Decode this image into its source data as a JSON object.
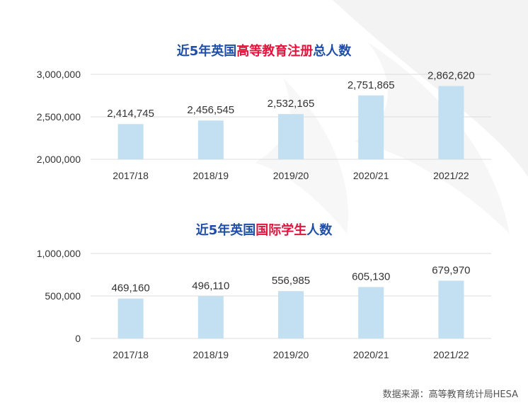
{
  "colors": {
    "bar": "#c2e0f1",
    "title_blue": "#1f4ea8",
    "title_red": "#e0143c",
    "grid": "#dcdcdc",
    "text": "#333333"
  },
  "charts": [
    {
      "title": {
        "part1": "近5年英国",
        "part2": "高等教育注册",
        "part3": "总人数"
      }
    },
    {
      "title": {
        "part1": "近5年英国",
        "part2": "国际学生",
        "part3": "人数"
      }
    }
  ],
  "chart_data": [
    {
      "type": "bar",
      "title": "近5年英国高等教育注册总人数",
      "categories": [
        "2017/18",
        "2018/19",
        "2019/20",
        "2020/21",
        "2021/22"
      ],
      "values": [
        2414745,
        2456545,
        2532165,
        2751865,
        2862620
      ],
      "value_labels": [
        "2,414,745",
        "2,456,545",
        "2,532,165",
        "2,751,865",
        "2,862,620"
      ],
      "yticks": [
        "2,000,000",
        "2,500,000",
        "3,000,000"
      ],
      "ylim": [
        2000000,
        3000000
      ],
      "grid": true,
      "legend": "none"
    },
    {
      "type": "bar",
      "title": "近5年英国国际学生人数",
      "categories": [
        "2017/18",
        "2018/19",
        "2019/20",
        "2020/21",
        "2021/22"
      ],
      "values": [
        469160,
        496110,
        556985,
        605130,
        679970
      ],
      "value_labels": [
        "469,160",
        "496,110",
        "556,985",
        "605,130",
        "679,970"
      ],
      "yticks": [
        "0",
        "500,000",
        "1,000,000"
      ],
      "ylim": [
        0,
        1000000
      ],
      "grid": true,
      "legend": "none"
    }
  ],
  "source": "数据来源：高等教育统计局HESA"
}
